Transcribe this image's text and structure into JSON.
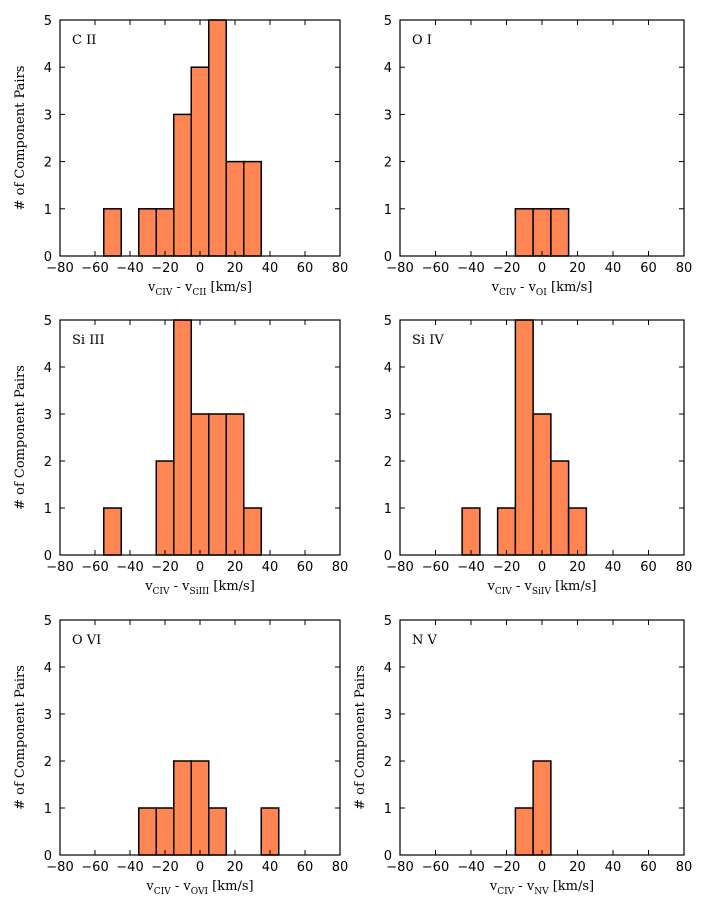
{
  "figure": {
    "bar_color": "#FF8552",
    "edge_color": "#000000",
    "bin_width_kms": 10
  },
  "chart_data": [
    {
      "type": "bar",
      "title": "C II",
      "ylabel": "# of Component Pairs",
      "xlabel": {
        "v1": "v",
        "s1": "CIV",
        "mid": " - ",
        "v2": "v",
        "s2": "CII",
        "unit": " [km/s]"
      },
      "xlim": [
        -80,
        80
      ],
      "ylim": [
        0,
        5
      ],
      "xticks": [
        -80,
        -60,
        -40,
        -20,
        0,
        20,
        40,
        60,
        80
      ],
      "yticks": [
        0,
        1,
        2,
        3,
        4,
        5
      ],
      "bins": [
        {
          "x": -50,
          "value": 1
        },
        {
          "x": -30,
          "value": 1
        },
        {
          "x": -20,
          "value": 1
        },
        {
          "x": -10,
          "value": 3
        },
        {
          "x": 0,
          "value": 4
        },
        {
          "x": 10,
          "value": 5
        },
        {
          "x": 20,
          "value": 2
        },
        {
          "x": 30,
          "value": 2
        }
      ]
    },
    {
      "type": "bar",
      "title": "O I",
      "ylabel": "",
      "xlabel": {
        "v1": "v",
        "s1": "CIV",
        "mid": " - ",
        "v2": "v",
        "s2": "OI",
        "unit": " [km/s]"
      },
      "xlim": [
        -80,
        80
      ],
      "ylim": [
        0,
        5
      ],
      "xticks": [
        -80,
        -60,
        -40,
        -20,
        0,
        20,
        40,
        60,
        80
      ],
      "yticks": [
        0,
        1,
        2,
        3,
        4,
        5
      ],
      "bins": [
        {
          "x": -10,
          "value": 1
        },
        {
          "x": 0,
          "value": 1
        },
        {
          "x": 10,
          "value": 1
        }
      ]
    },
    {
      "type": "bar",
      "title": "Si III",
      "ylabel": "# of Component Pairs",
      "xlabel": {
        "v1": "v",
        "s1": "CIV",
        "mid": " - ",
        "v2": "v",
        "s2": "SiIII",
        "unit": " [km/s]"
      },
      "xlim": [
        -80,
        80
      ],
      "ylim": [
        0,
        5
      ],
      "xticks": [
        -80,
        -60,
        -40,
        -20,
        0,
        20,
        40,
        60,
        80
      ],
      "yticks": [
        0,
        1,
        2,
        3,
        4,
        5
      ],
      "bins": [
        {
          "x": -50,
          "value": 1
        },
        {
          "x": -20,
          "value": 2
        },
        {
          "x": -10,
          "value": 5
        },
        {
          "x": 0,
          "value": 3
        },
        {
          "x": 10,
          "value": 3
        },
        {
          "x": 20,
          "value": 3
        },
        {
          "x": 30,
          "value": 1
        }
      ]
    },
    {
      "type": "bar",
      "title": "Si IV",
      "ylabel": "",
      "xlabel": {
        "v1": "v",
        "s1": "CIV",
        "mid": " - ",
        "v2": "v",
        "s2": "SiIV",
        "unit": " [km/s]"
      },
      "xlim": [
        -80,
        80
      ],
      "ylim": [
        0,
        5
      ],
      "xticks": [
        -80,
        -60,
        -40,
        -20,
        0,
        20,
        40,
        60,
        80
      ],
      "yticks": [
        0,
        1,
        2,
        3,
        4,
        5
      ],
      "bins": [
        {
          "x": -40,
          "value": 1
        },
        {
          "x": -20,
          "value": 1
        },
        {
          "x": -10,
          "value": 5
        },
        {
          "x": 0,
          "value": 3
        },
        {
          "x": 10,
          "value": 2
        },
        {
          "x": 20,
          "value": 1
        }
      ]
    },
    {
      "type": "bar",
      "title": "O VI",
      "ylabel": "# of Component Pairs",
      "xlabel": {
        "v1": "v",
        "s1": "CIV",
        "mid": " - ",
        "v2": "v",
        "s2": "OVI",
        "unit": " [km/s]"
      },
      "xlim": [
        -80,
        80
      ],
      "ylim": [
        0,
        5
      ],
      "xticks": [
        -80,
        -60,
        -40,
        -20,
        0,
        20,
        40,
        60,
        80
      ],
      "yticks": [
        0,
        1,
        2,
        3,
        4,
        5
      ],
      "bins": [
        {
          "x": -30,
          "value": 1
        },
        {
          "x": -20,
          "value": 1
        },
        {
          "x": -10,
          "value": 2
        },
        {
          "x": 0,
          "value": 2
        },
        {
          "x": 10,
          "value": 1
        },
        {
          "x": 40,
          "value": 1
        }
      ]
    },
    {
      "type": "bar",
      "title": "N V",
      "ylabel": "# of Component Pairs",
      "xlabel": {
        "v1": "v",
        "s1": "CIV",
        "mid": " - ",
        "v2": "v",
        "s2": "NV",
        "unit": " [km/s]"
      },
      "xlim": [
        -80,
        80
      ],
      "ylim": [
        0,
        5
      ],
      "xticks": [
        -80,
        -60,
        -40,
        -20,
        0,
        20,
        40,
        60,
        80
      ],
      "yticks": [
        0,
        1,
        2,
        3,
        4,
        5
      ],
      "bins": [
        {
          "x": -10,
          "value": 1
        },
        {
          "x": 0,
          "value": 2
        }
      ]
    }
  ]
}
